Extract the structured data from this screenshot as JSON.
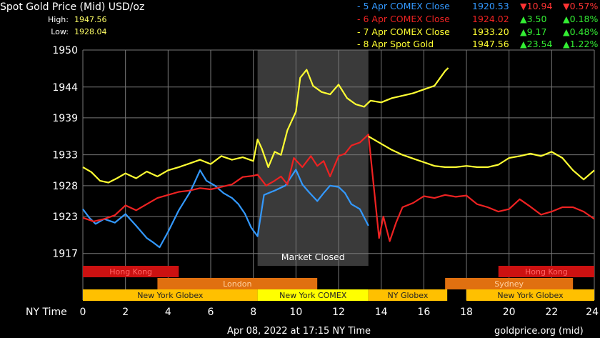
{
  "header": {
    "title": "Spot Gold Price (Mid) USD/oz",
    "high_label": "High:",
    "high_value": "1947.56",
    "low_label": "Low:",
    "low_value": "1928.04"
  },
  "legend": [
    {
      "label": "- 5 Apr COMEX Close",
      "color": "#3399ff",
      "price": "1920.53",
      "change": "10.94",
      "pct": "0.57%",
      "dir": "down"
    },
    {
      "label": "- 6 Apr COMEX Close",
      "color": "#ee2222",
      "price": "1924.02",
      "change": "3.50",
      "pct": "0.18%",
      "dir": "up"
    },
    {
      "label": "- 7 Apr COMEX Close",
      "color": "#ffff33",
      "price": "1933.20",
      "change": "9.17",
      "pct": "0.48%",
      "dir": "up"
    },
    {
      "label": "- 8 Apr Spot Gold",
      "color": "#ffff33",
      "price": "1947.56",
      "change": "23.54",
      "pct": "1.22%",
      "dir": "up"
    }
  ],
  "market_closed_label": "Market Closed",
  "axis": {
    "x_label": "NY Time",
    "x_ticks": [
      "0",
      "2",
      "4",
      "6",
      "8",
      "10",
      "12",
      "14",
      "16",
      "18",
      "20",
      "22",
      "24"
    ],
    "y_ticks": [
      "1950",
      "1944",
      "1939",
      "1933",
      "1928",
      "1923",
      "1917"
    ]
  },
  "sessions": [
    {
      "label": "Hong Kong",
      "row": 0,
      "start": 0,
      "end": 4.5,
      "color": "#cc1111",
      "text_color": "#ff6666"
    },
    {
      "label": "Hong Kong",
      "row": 0,
      "start": 19.5,
      "end": 24,
      "color": "#cc1111",
      "text_color": "#ff6666"
    },
    {
      "label": "London",
      "row": 1,
      "start": 3.5,
      "end": 11,
      "color": "#e07010",
      "text_color": "#ffd0a0"
    },
    {
      "label": "Sydney",
      "row": 1,
      "start": 17,
      "end": 23,
      "color": "#e07010",
      "text_color": "#ffd0a0"
    },
    {
      "label": "New York Globex",
      "row": 2,
      "start": 0,
      "end": 8.2,
      "color": "#ffc000",
      "text_color": "#222222"
    },
    {
      "label": "New York COMEX",
      "row": 2,
      "start": 8.2,
      "end": 13.4,
      "color": "#ffff00",
      "text_color": "#222222"
    },
    {
      "label": "NY Globex",
      "row": 2,
      "start": 13.4,
      "end": 17.1,
      "color": "#ffc000",
      "text_color": "#222222"
    },
    {
      "label": "New York Globex",
      "row": 2,
      "start": 18,
      "end": 24,
      "color": "#ffc000",
      "text_color": "#222222"
    }
  ],
  "footer": {
    "timestamp": "Apr 08, 2022 at 17:15 NY Time",
    "source": "goldprice.org (mid)"
  },
  "chart_data": {
    "type": "line",
    "xlim": [
      0,
      24
    ],
    "ylim": [
      1915,
      1950
    ],
    "grid": true,
    "market_closed_range": [
      8.2,
      13.4
    ],
    "series": [
      {
        "name": "5 Apr COMEX Close",
        "color": "#3399ff",
        "points": [
          [
            0,
            1924.2
          ],
          [
            0.3,
            1922.8
          ],
          [
            0.6,
            1921.8
          ],
          [
            1,
            1922.6
          ],
          [
            1.5,
            1922.0
          ],
          [
            2,
            1923.4
          ],
          [
            2.5,
            1921.5
          ],
          [
            3,
            1919.5
          ],
          [
            3.3,
            1918.8
          ],
          [
            3.6,
            1918.0
          ],
          [
            4,
            1920.5
          ],
          [
            4.5,
            1924.0
          ],
          [
            5,
            1926.8
          ],
          [
            5.2,
            1928.2
          ],
          [
            5.5,
            1930.5
          ],
          [
            5.8,
            1928.8
          ],
          [
            6.2,
            1928.0
          ],
          [
            6.6,
            1926.8
          ],
          [
            7,
            1926.0
          ],
          [
            7.3,
            1925.0
          ],
          [
            7.6,
            1923.5
          ],
          [
            7.9,
            1921.2
          ],
          [
            8.2,
            1919.8
          ],
          [
            8.5,
            1926.5
          ],
          [
            9,
            1927.2
          ],
          [
            9.5,
            1928.0
          ],
          [
            10,
            1930.6
          ],
          [
            10.3,
            1928.2
          ],
          [
            10.6,
            1927.0
          ],
          [
            11,
            1925.5
          ],
          [
            11.3,
            1926.8
          ],
          [
            11.6,
            1928.0
          ],
          [
            12,
            1927.8
          ],
          [
            12.3,
            1926.8
          ],
          [
            12.6,
            1925.0
          ],
          [
            13,
            1924.2
          ],
          [
            13.4,
            1921.5
          ]
        ]
      },
      {
        "name": "6 Apr COMEX Close",
        "color": "#ee2222",
        "points": [
          [
            0,
            1922.8
          ],
          [
            0.5,
            1922.2
          ],
          [
            1,
            1922.6
          ],
          [
            1.5,
            1923.2
          ],
          [
            2,
            1924.8
          ],
          [
            2.5,
            1924.0
          ],
          [
            3,
            1925.0
          ],
          [
            3.5,
            1926.0
          ],
          [
            4,
            1926.5
          ],
          [
            4.5,
            1927.0
          ],
          [
            5,
            1927.2
          ],
          [
            5.5,
            1927.6
          ],
          [
            6,
            1927.4
          ],
          [
            6.5,
            1927.8
          ],
          [
            7,
            1928.2
          ],
          [
            7.5,
            1929.4
          ],
          [
            8,
            1929.6
          ],
          [
            8.2,
            1929.8
          ],
          [
            8.6,
            1928.0
          ],
          [
            9,
            1928.8
          ],
          [
            9.3,
            1929.5
          ],
          [
            9.6,
            1928.2
          ],
          [
            9.9,
            1932.5
          ],
          [
            10.3,
            1931.0
          ],
          [
            10.7,
            1932.8
          ],
          [
            11,
            1931.2
          ],
          [
            11.3,
            1932.0
          ],
          [
            11.6,
            1929.5
          ],
          [
            12,
            1932.8
          ],
          [
            12.3,
            1933.2
          ],
          [
            12.6,
            1934.5
          ],
          [
            13,
            1935.0
          ],
          [
            13.4,
            1936.3
          ],
          [
            13.9,
            1919.5
          ],
          [
            14.1,
            1923.0
          ],
          [
            14.4,
            1919.0
          ],
          [
            14.7,
            1922.0
          ],
          [
            15,
            1924.5
          ],
          [
            15.5,
            1925.2
          ],
          [
            16,
            1926.3
          ],
          [
            16.5,
            1926.0
          ],
          [
            17,
            1926.5
          ],
          [
            17.5,
            1926.2
          ],
          [
            18,
            1926.4
          ],
          [
            18.5,
            1925.0
          ],
          [
            19,
            1924.5
          ],
          [
            19.5,
            1923.8
          ],
          [
            20,
            1924.2
          ],
          [
            20.5,
            1925.8
          ],
          [
            21,
            1924.6
          ],
          [
            21.5,
            1923.3
          ],
          [
            22,
            1923.8
          ],
          [
            22.5,
            1924.5
          ],
          [
            23,
            1924.5
          ],
          [
            23.5,
            1923.8
          ],
          [
            24,
            1922.6
          ]
        ]
      },
      {
        "name": "7 Apr COMEX Close",
        "color": "#ffff33",
        "points": [
          [
            13.4,
            1936.0
          ],
          [
            14,
            1934.8
          ],
          [
            14.5,
            1933.8
          ],
          [
            15,
            1933.0
          ],
          [
            15.5,
            1932.4
          ],
          [
            16,
            1931.8
          ],
          [
            16.5,
            1931.2
          ],
          [
            17,
            1931.0
          ],
          [
            17.5,
            1931.0
          ],
          [
            18,
            1931.2
          ],
          [
            18.5,
            1931.0
          ],
          [
            19,
            1931.0
          ],
          [
            19.5,
            1931.4
          ],
          [
            20,
            1932.5
          ],
          [
            20.5,
            1932.8
          ],
          [
            21,
            1933.2
          ],
          [
            21.5,
            1932.8
          ],
          [
            22,
            1933.5
          ],
          [
            22.5,
            1932.5
          ],
          [
            23,
            1930.5
          ],
          [
            23.5,
            1929.0
          ],
          [
            24,
            1930.5
          ]
        ]
      },
      {
        "name": "8 Apr Spot Gold",
        "color": "#ffff33",
        "points": [
          [
            0,
            1931.0
          ],
          [
            0.4,
            1930.2
          ],
          [
            0.8,
            1928.8
          ],
          [
            1.2,
            1928.5
          ],
          [
            1.6,
            1929.2
          ],
          [
            2,
            1930.0
          ],
          [
            2.5,
            1929.2
          ],
          [
            3,
            1930.3
          ],
          [
            3.5,
            1929.5
          ],
          [
            4,
            1930.5
          ],
          [
            4.5,
            1931.0
          ],
          [
            5,
            1931.6
          ],
          [
            5.5,
            1932.2
          ],
          [
            6,
            1931.5
          ],
          [
            6.5,
            1932.8
          ],
          [
            7,
            1932.2
          ],
          [
            7.5,
            1932.6
          ],
          [
            8,
            1932.0
          ],
          [
            8.2,
            1935.5
          ],
          [
            8.4,
            1934.0
          ],
          [
            8.7,
            1931.0
          ],
          [
            9,
            1933.5
          ],
          [
            9.3,
            1933.0
          ],
          [
            9.6,
            1937.0
          ],
          [
            10,
            1940.0
          ],
          [
            10.2,
            1945.5
          ],
          [
            10.5,
            1946.8
          ],
          [
            10.8,
            1944.2
          ],
          [
            11.2,
            1943.2
          ],
          [
            11.6,
            1942.8
          ],
          [
            12,
            1944.4
          ],
          [
            12.4,
            1942.2
          ],
          [
            12.8,
            1941.2
          ],
          [
            13.2,
            1940.8
          ],
          [
            13.5,
            1941.8
          ],
          [
            14,
            1941.5
          ],
          [
            14.5,
            1942.2
          ],
          [
            15,
            1942.6
          ],
          [
            15.5,
            1943.0
          ],
          [
            16,
            1943.6
          ],
          [
            16.5,
            1944.2
          ],
          [
            17,
            1946.6
          ],
          [
            17.15,
            1947.1
          ]
        ]
      }
    ]
  }
}
